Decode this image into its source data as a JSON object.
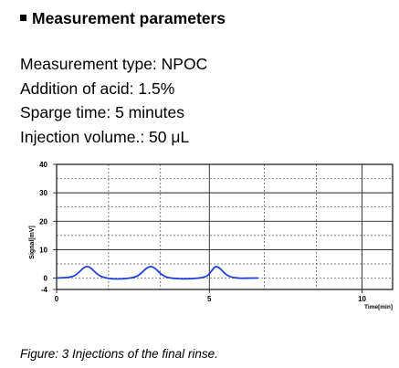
{
  "section": {
    "title": "Measurement parameters"
  },
  "params": [
    "Measurement type: NPOC",
    "Addition of acid: 1.5%",
    "Sparge time: 5 minutes",
    "Injection volume.: 50 μL"
  ],
  "caption": "Figure: 3 Injections of the final rinse.",
  "chart_data": {
    "type": "line",
    "title": "",
    "xlabel": "Time[min]",
    "ylabel": "Signal[mV]",
    "xlim": [
      0,
      11
    ],
    "ylim": [
      -4,
      40
    ],
    "xticks": [
      0,
      5,
      10
    ],
    "yticks": [
      40,
      30,
      20,
      10,
      0,
      -4
    ],
    "grid": true,
    "line_color": "#1f3fd6",
    "series": [
      {
        "x": [
          0.0,
          0.5,
          0.7,
          0.85,
          1.0,
          1.15,
          1.3,
          1.5,
          1.8,
          2.2,
          2.6,
          2.8,
          2.95,
          3.1,
          3.25,
          3.4,
          3.6,
          3.9,
          4.4,
          4.9,
          5.05,
          5.2,
          5.35,
          5.5,
          5.7,
          6.0,
          6.3,
          6.6
        ],
        "y": [
          0.0,
          0.3,
          1.6,
          3.4,
          4.3,
          3.4,
          1.6,
          0.3,
          -0.3,
          -0.3,
          0.3,
          2.0,
          3.6,
          4.2,
          3.3,
          1.5,
          0.2,
          -0.2,
          -0.3,
          0.3,
          2.2,
          4.3,
          3.5,
          1.6,
          0.3,
          -0.1,
          0.0,
          0.0
        ]
      }
    ]
  }
}
